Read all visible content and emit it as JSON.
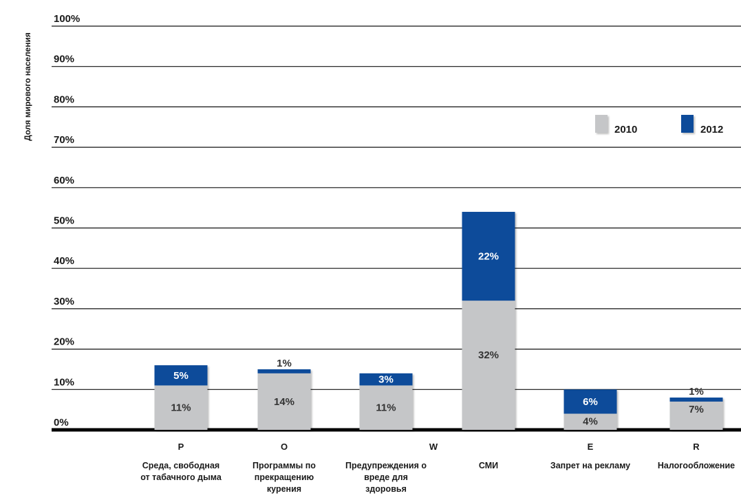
{
  "chart_data": {
    "type": "bar",
    "stacked": true,
    "ylabel": "Доля мирового населения",
    "ylim": [
      0,
      100
    ],
    "yticks": [
      "0%",
      "10%",
      "20%",
      "30%",
      "40%",
      "50%",
      "60%",
      "70%",
      "80%",
      "90%",
      "100%"
    ],
    "categories": [
      {
        "code": "P",
        "lines": [
          "Среда, свободная",
          "от табачного дыма"
        ]
      },
      {
        "code": "O",
        "lines": [
          "Программы по",
          "прекращению",
          "курения"
        ]
      },
      {
        "code": "W",
        "lines": [
          "Предупреждения о",
          "вреде для",
          "здоровья"
        ]
      },
      {
        "code": "",
        "lines": [
          "СМИ"
        ]
      },
      {
        "code": "E",
        "lines": [
          "Запрет на рекламу"
        ]
      },
      {
        "code": "R",
        "lines": [
          "Налогообложение"
        ]
      }
    ],
    "series": [
      {
        "name": "2010",
        "color": "#c5c6c8",
        "values": [
          11,
          14,
          11,
          32,
          4,
          7
        ],
        "labels": [
          "11%",
          "14%",
          "11%",
          "32%",
          "4%",
          "7%"
        ]
      },
      {
        "name": "2012",
        "color": "#0f4c9a",
        "values": [
          5,
          1,
          3,
          22,
          6,
          1
        ],
        "labels": [
          "5%",
          "1%",
          "3%",
          "22%",
          "6%",
          "1%"
        ]
      }
    ],
    "legend_position": "top-right",
    "grid": true
  }
}
